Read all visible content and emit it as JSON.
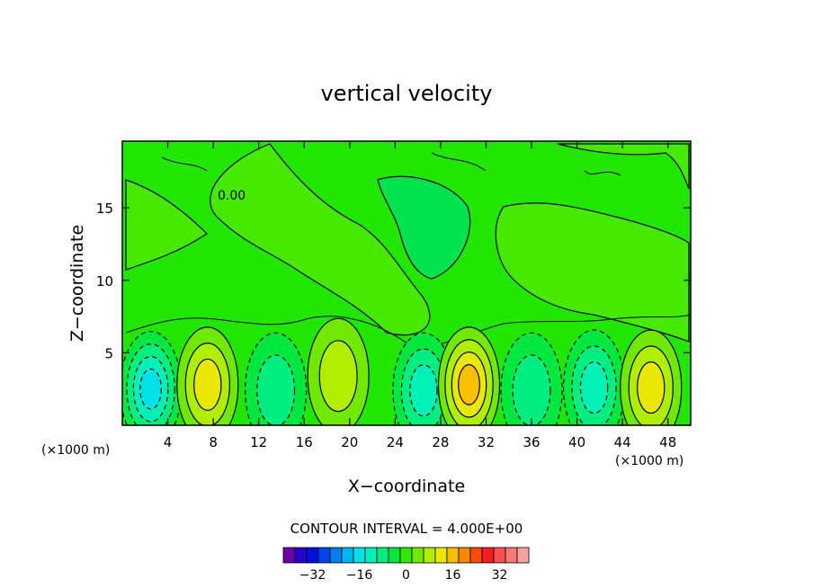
{
  "chart_data": {
    "type": "heatmap",
    "title": "vertical velocity",
    "xlabel": "X−coordinate",
    "ylabel": "Z−coordinate",
    "x_unit_left": "(×1000 m)",
    "x_unit_right": "(×1000 m)",
    "xlim": [
      0,
      50
    ],
    "ylim": [
      0,
      19.6
    ],
    "x_ticks": [
      4,
      8,
      12,
      16,
      20,
      24,
      28,
      32,
      36,
      40,
      44,
      48
    ],
    "x_tick_labels": [
      "4",
      "8",
      "12",
      "16",
      "20",
      "24",
      "28",
      "32",
      "36",
      "40",
      "44",
      "48"
    ],
    "y_ticks": [
      5,
      10,
      15
    ],
    "y_tick_labels": [
      "5",
      "10",
      "15"
    ],
    "contour_label": "0.00",
    "contour_interval_text": "CONTOUR INTERVAL = 4.000E+00",
    "contour_interval": 4,
    "grid": false,
    "cells": [
      {
        "x": 2.5,
        "z": 2.5,
        "w": -16
      },
      {
        "x": 7.5,
        "z": 2.8,
        "w": 14
      },
      {
        "x": 13.5,
        "z": 2.4,
        "w": -10
      },
      {
        "x": 19,
        "z": 3.4,
        "w": 11
      },
      {
        "x": 26.5,
        "z": 2.4,
        "w": -14
      },
      {
        "x": 30.5,
        "z": 2.8,
        "w": 16
      },
      {
        "x": 36,
        "z": 2.4,
        "w": -10
      },
      {
        "x": 41.5,
        "z": 2.6,
        "w": -15
      },
      {
        "x": 46.5,
        "z": 2.6,
        "w": 14
      }
    ],
    "colorbar": {
      "colors": [
        "#6a00a8",
        "#2a00cc",
        "#0010e0",
        "#0044ee",
        "#0080f0",
        "#00b4f0",
        "#00e0e8",
        "#00f0b8",
        "#00ee80",
        "#00e840",
        "#30e800",
        "#70e800",
        "#b0ee00",
        "#e8e800",
        "#f8c000",
        "#f88800",
        "#f84c00",
        "#f81c1c",
        "#f85050",
        "#f87878",
        "#f8a0a0"
      ],
      "tick_values": [
        -32,
        -16,
        0,
        16,
        32
      ],
      "tick_labels": [
        "−32",
        "−16",
        "0",
        "16",
        "32"
      ]
    }
  }
}
